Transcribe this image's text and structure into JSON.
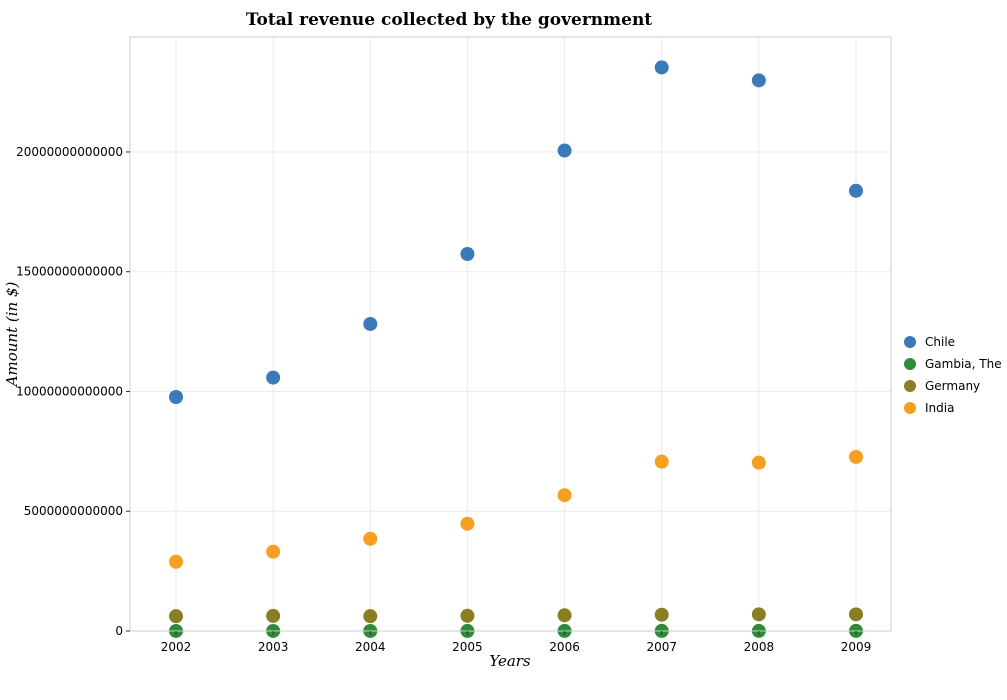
{
  "chart_data": {
    "type": "scatter",
    "title": "Total revenue collected by the government",
    "xlabel": "Years",
    "ylabel": "Amount (in $)",
    "categories": [
      "2002",
      "2003",
      "2004",
      "2005",
      "2006",
      "2007",
      "2008",
      "2009"
    ],
    "ylim": [
      0,
      24800000000000
    ],
    "yticks": [
      0,
      5000000000000,
      10000000000000,
      15000000000000,
      20000000000000
    ],
    "ytick_labels": [
      "0",
      "5000000000000",
      "10000000000000",
      "15000000000000",
      "20000000000000"
    ],
    "grid": true,
    "legend_position": "right",
    "series": [
      {
        "name": "Chile",
        "color": "#3a7ab8",
        "values": [
          9770000000000,
          10580000000000,
          12820000000000,
          15740000000000,
          20060000000000,
          23530000000000,
          22990000000000,
          18380000000000
        ]
      },
      {
        "name": "Gambia, The",
        "color": "#2e8b3a",
        "values": [
          1500000000,
          1800000000,
          2500000000,
          3000000000,
          3500000000,
          4000000000,
          4300000000,
          4600000000
        ]
      },
      {
        "name": "Germany",
        "color": "#8a7e22",
        "values": [
          620000000000,
          630000000000,
          620000000000,
          635000000000,
          655000000000,
          680000000000,
          695000000000,
          695000000000
        ]
      },
      {
        "name": "India",
        "color": "#f5a020",
        "values": [
          2890000000000,
          3310000000000,
          3850000000000,
          4480000000000,
          5670000000000,
          7070000000000,
          7030000000000,
          7270000000000
        ]
      }
    ]
  }
}
